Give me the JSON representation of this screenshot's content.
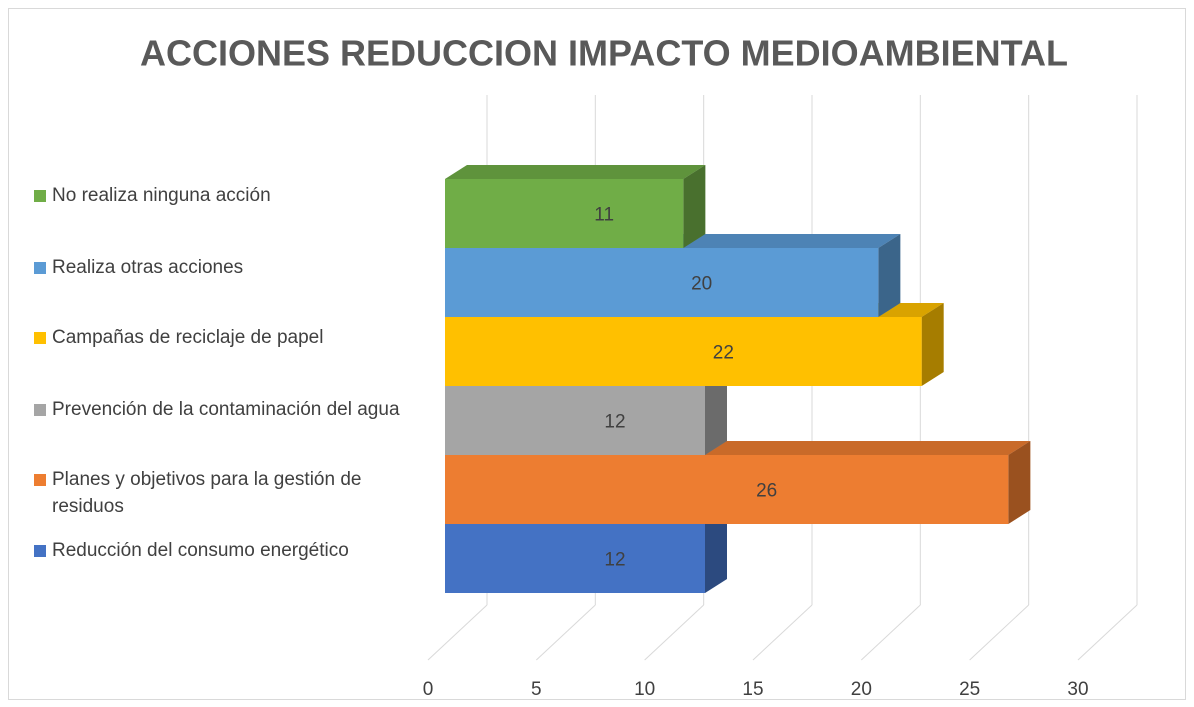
{
  "chart_data": {
    "type": "bar",
    "orientation": "horizontal",
    "title": "ACCIONES REDUCCION IMPACTO MEDIOAMBIENTAL",
    "categories": [
      "Reducción del consumo energético",
      "Planes y objetivos para la gestión de residuos",
      "Prevención de la contaminación del agua",
      "Campañas de reciclaje de papel",
      "Realiza otras acciones",
      "No realiza ninguna acción"
    ],
    "values": [
      12,
      26,
      12,
      22,
      20,
      11
    ],
    "colors": [
      "#4472c4",
      "#ed7d31",
      "#a5a5a5",
      "#ffc000",
      "#5b9bd5",
      "#70ad47"
    ],
    "xlim": [
      0,
      30
    ],
    "xticks": [
      0,
      5,
      10,
      15,
      20,
      25,
      30
    ],
    "grid": true,
    "legend": "left"
  }
}
